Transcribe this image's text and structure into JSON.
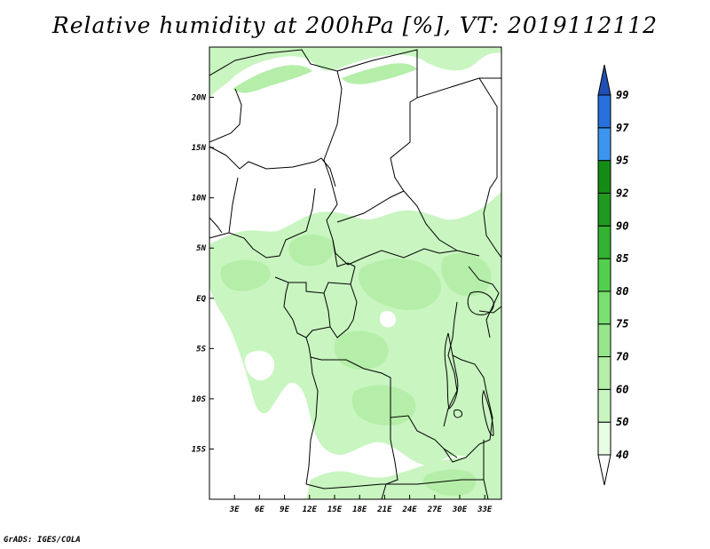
{
  "title": "Relative humidity at 200hPa [%], VT: 2019112112",
  "credit": "GrADS: IGES/COLA",
  "map": {
    "lon_range": [
      0,
      35
    ],
    "lat_range": [
      -20,
      25
    ],
    "lat_ticks": [
      {
        "value": 20,
        "label": "20N"
      },
      {
        "value": 15,
        "label": "15N"
      },
      {
        "value": 10,
        "label": "10N"
      },
      {
        "value": 5,
        "label": "5N"
      },
      {
        "value": 0,
        "label": "EQ"
      },
      {
        "value": -5,
        "label": "5S"
      },
      {
        "value": -10,
        "label": "10S"
      },
      {
        "value": -15,
        "label": "15S"
      }
    ],
    "lon_ticks": [
      {
        "value": 3,
        "label": "3E"
      },
      {
        "value": 6,
        "label": "6E"
      },
      {
        "value": 9,
        "label": "9E"
      },
      {
        "value": 12,
        "label": "12E"
      },
      {
        "value": 15,
        "label": "15E"
      },
      {
        "value": 18,
        "label": "18E"
      },
      {
        "value": 21,
        "label": "21E"
      },
      {
        "value": 24,
        "label": "24E"
      },
      {
        "value": 27,
        "label": "27E"
      },
      {
        "value": 30,
        "label": "30E"
      },
      {
        "value": 33,
        "label": "33E"
      }
    ],
    "field_color": "#c8f5c0",
    "field_dark_color": "#b4eea8"
  },
  "colorbar": {
    "levels": [
      "40",
      "50",
      "60",
      "70",
      "75",
      "80",
      "85",
      "90",
      "92",
      "95",
      "97",
      "99"
    ],
    "colors": [
      "#ffffff",
      "#e6fde1",
      "#c8f5c0",
      "#b4eea8",
      "#96e68a",
      "#78e070",
      "#52d04c",
      "#32b432",
      "#1f9a1f",
      "#148c14",
      "#3c96f0",
      "#2870dc",
      "#1e50b4"
    ]
  }
}
